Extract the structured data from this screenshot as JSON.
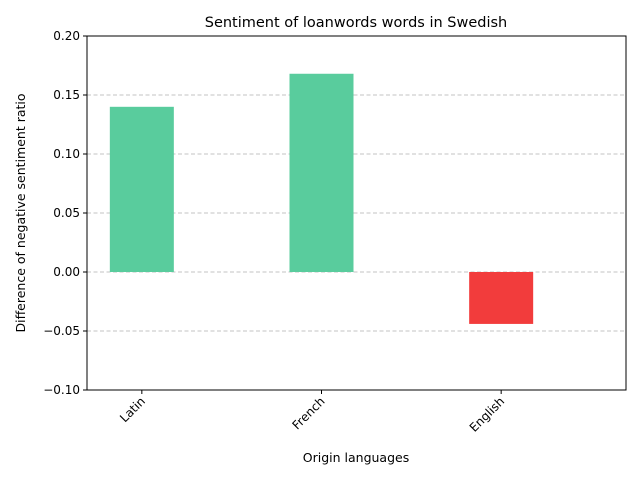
{
  "chart_data": {
    "type": "bar",
    "title": "Sentiment of loanwords words in Swedish",
    "xlabel": "Origin languages",
    "ylabel": "Difference of negative sentiment ratio",
    "categories": [
      "Latin",
      "French",
      "English"
    ],
    "values": [
      0.14,
      0.168,
      -0.044
    ],
    "bar_colors": [
      "#59cc9d",
      "#59cc9d",
      "#f23c3c"
    ],
    "ylim": [
      -0.1,
      0.2
    ],
    "yticks": [
      -0.1,
      -0.05,
      0.0,
      0.05,
      0.1,
      0.15,
      0.2
    ],
    "ytick_labels": [
      "−0.10",
      "−0.05",
      "0.00",
      "0.05",
      "0.10",
      "0.15",
      "0.20"
    ],
    "grid": "y-dashed",
    "xtick_rotation": 45
  }
}
